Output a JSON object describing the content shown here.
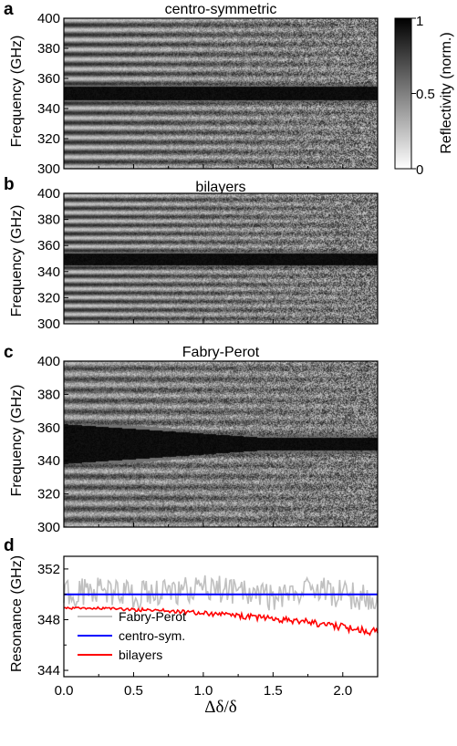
{
  "panel_labels": [
    "a",
    "b",
    "c",
    "d"
  ],
  "colorbar": {
    "label": "Reflectivity (norm.)",
    "tick_labels": [
      "1",
      "0.5",
      "0"
    ],
    "colors": {
      "high": "#000000",
      "low": "#ffffff"
    }
  },
  "chart_data": [
    {
      "type": "heatmap",
      "title": "centro-symmetric",
      "xlabel": "",
      "ylabel": "Frequency (GHz)",
      "xlim": [
        0,
        2.25
      ],
      "ylim": [
        300,
        400
      ],
      "ytick_labels": [
        "300",
        "320",
        "340",
        "360",
        "380",
        "400"
      ],
      "resonance_ghz": 350,
      "stopband_halfwidth_ghz": 4.5,
      "colorscale": "gray_r",
      "zlim": [
        0,
        1
      ]
    },
    {
      "type": "heatmap",
      "title": "bilayers",
      "xlabel": "",
      "ylabel": "Frequency (GHz)",
      "xlim": [
        0,
        2.25
      ],
      "ylim": [
        300,
        400
      ],
      "ytick_labels": [
        "300",
        "320",
        "340",
        "360",
        "380",
        "400"
      ],
      "resonance_ghz": 349.5,
      "stopband_halfwidth_ghz": 4.5,
      "colorscale": "gray_r",
      "zlim": [
        0,
        1
      ]
    },
    {
      "type": "heatmap",
      "title": "Fabry-Perot",
      "xlabel": "",
      "ylabel": "Frequency (GHz)",
      "xlim": [
        0,
        2.25
      ],
      "ylim": [
        300,
        400
      ],
      "ytick_labels": [
        "300",
        "320",
        "340",
        "360",
        "380",
        "400"
      ],
      "resonance_ghz": 350,
      "stopband_halfwidth_ghz": [
        12,
        4
      ],
      "colorscale": "gray_r",
      "zlim": [
        0,
        1
      ]
    },
    {
      "type": "line",
      "title": "",
      "xlabel": "Δδ/δ",
      "ylabel": "Resonance (GHz)",
      "xlim": [
        0,
        2.25
      ],
      "ylim": [
        343.5,
        353
      ],
      "xtick_labels": [
        "0.0",
        "0.5",
        "1.0",
        "1.5",
        "2.0"
      ],
      "ytick_labels": [
        "344",
        "348",
        "352"
      ],
      "legend_position": "bottom-left",
      "series": [
        {
          "name": "Fabry-Perot",
          "color": "#c0c0c0",
          "x": [
            0,
            0.25,
            0.5,
            0.75,
            1.0,
            1.25,
            1.5,
            1.75,
            2.0,
            2.25
          ],
          "values": [
            350.0,
            350.3,
            349.9,
            350.2,
            350.6,
            350.1,
            349.7,
            350.4,
            350.0,
            349.5
          ]
        },
        {
          "name": "centro-sym.",
          "color": "#0000ff",
          "x": [
            0,
            0.25,
            0.5,
            0.75,
            1.0,
            1.25,
            1.5,
            1.75,
            2.0,
            2.25
          ],
          "values": [
            350.0,
            350.0,
            350.0,
            350.0,
            350.0,
            350.0,
            350.0,
            350.0,
            350.0,
            350.0
          ]
        },
        {
          "name": "bilayers",
          "color": "#ff0000",
          "x": [
            0,
            0.25,
            0.5,
            0.75,
            1.0,
            1.25,
            1.5,
            1.75,
            2.0,
            2.25
          ],
          "values": [
            348.9,
            348.9,
            348.8,
            348.7,
            348.5,
            348.3,
            348.1,
            347.8,
            347.4,
            347.0
          ]
        }
      ]
    }
  ]
}
